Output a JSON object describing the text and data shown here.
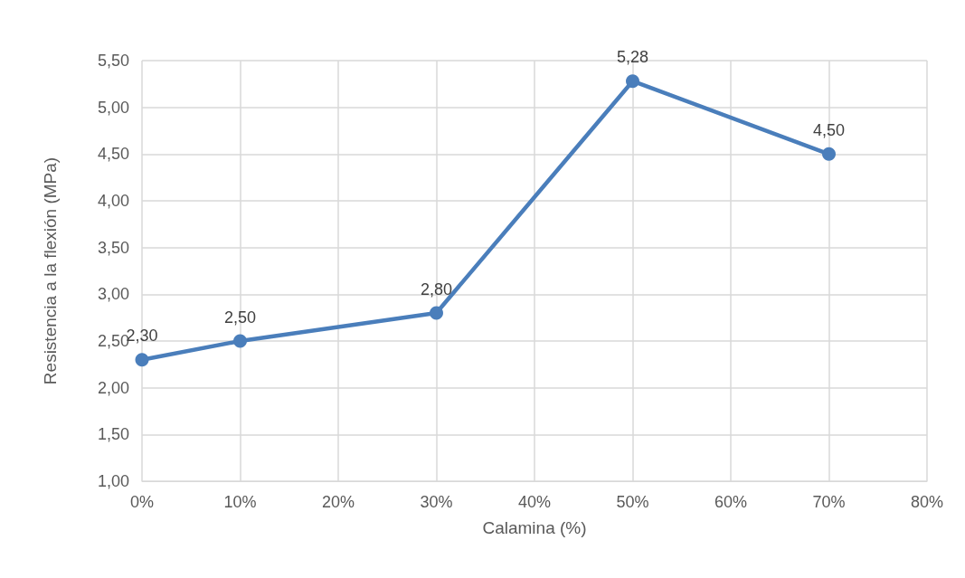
{
  "chart_data": {
    "type": "line",
    "xlabel": "Calamina (%)",
    "ylabel": "Resistencia a la flexión (MPa)",
    "x": [
      0,
      10,
      30,
      50,
      70
    ],
    "series": [
      {
        "color": "#4a7ebb",
        "values": [
          2.3,
          2.5,
          2.8,
          5.28,
          4.5
        ],
        "value_labels": [
          "2,30",
          "2,50",
          "2,80",
          "5,28",
          "4,50"
        ]
      }
    ],
    "xlim": [
      0,
      80
    ],
    "xticks": [
      {
        "value": 0,
        "label": "0%"
      },
      {
        "value": 10,
        "label": "10%"
      },
      {
        "value": 20,
        "label": "20%"
      },
      {
        "value": 30,
        "label": "30%"
      },
      {
        "value": 40,
        "label": "40%"
      },
      {
        "value": 50,
        "label": "50%"
      },
      {
        "value": 60,
        "label": "60%"
      },
      {
        "value": 70,
        "label": "70%"
      },
      {
        "value": 80,
        "label": "80%"
      }
    ],
    "ylim": [
      1,
      5.5
    ],
    "yticks": [
      {
        "value": 1,
        "label": "1,00"
      },
      {
        "value": 1.5,
        "label": "1,50"
      },
      {
        "value": 2,
        "label": "2,00"
      },
      {
        "value": 2.5,
        "label": "2,50"
      },
      {
        "value": 3,
        "label": "3,00"
      },
      {
        "value": 3.5,
        "label": "3,50"
      },
      {
        "value": 4,
        "label": "4,00"
      },
      {
        "value": 4.5,
        "label": "4,50"
      },
      {
        "value": 5,
        "label": "5,00"
      },
      {
        "value": 5.5,
        "label": "5,50"
      }
    ],
    "grid": true,
    "marker": "circle",
    "line_style": "solid"
  }
}
